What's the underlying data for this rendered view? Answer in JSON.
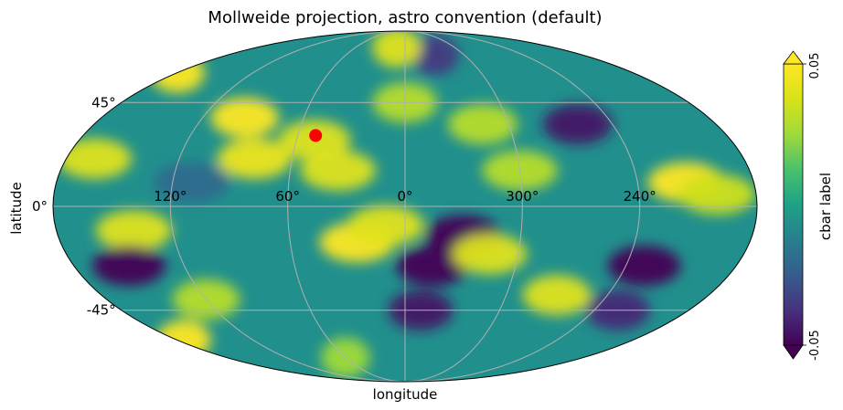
{
  "chart_data": {
    "type": "heatmap",
    "projection": "mollweide",
    "title": "Mollweide projection, astro convention (default)",
    "xlabel": "longitude",
    "ylabel": "latitude",
    "lon_ticks": [
      "120°",
      "60°",
      "0°",
      "300°",
      "240°"
    ],
    "lon_tick_values": [
      120,
      60,
      0,
      300,
      240
    ],
    "lat_ticks": [
      "45°",
      "0°",
      "-45°"
    ],
    "lat_tick_values": [
      45,
      0,
      -45
    ],
    "grid": true,
    "colormap": "viridis",
    "colorbar": {
      "label": "cbar label",
      "vmin": -0.05,
      "vmax": 0.05,
      "min_label": "-0.05",
      "max_label": "0.05",
      "extend": "both",
      "position": "right"
    },
    "point": {
      "lon": 50,
      "lat": 30,
      "color": "#ff0000"
    },
    "field_features": [
      {
        "lon": 95,
        "lat": 38,
        "value": 0.05
      },
      {
        "lon": 80,
        "lat": 20,
        "value": 0.045
      },
      {
        "lon": 50,
        "lat": 28,
        "value": 0.04
      },
      {
        "lon": 35,
        "lat": 15,
        "value": 0.04
      },
      {
        "lon": 25,
        "lat": -15,
        "value": 0.05
      },
      {
        "lon": 10,
        "lat": -8,
        "value": 0.04
      },
      {
        "lon": 140,
        "lat": -10,
        "value": 0.04
      },
      {
        "lon": 165,
        "lat": 20,
        "value": 0.04
      },
      {
        "lon": 120,
        "lat": -40,
        "value": 0.03
      },
      {
        "lon": 345,
        "lat": -25,
        "value": -0.05
      },
      {
        "lon": 330,
        "lat": -12,
        "value": -0.05
      },
      {
        "lon": 350,
        "lat": -45,
        "value": -0.045
      },
      {
        "lon": 150,
        "lat": -25,
        "value": -0.05
      },
      {
        "lon": 230,
        "lat": -25,
        "value": -0.05
      },
      {
        "lon": 225,
        "lat": -45,
        "value": -0.04
      },
      {
        "lon": 260,
        "lat": 35,
        "value": -0.045
      },
      {
        "lon": 330,
        "lat": 70,
        "value": -0.035
      },
      {
        "lon": 315,
        "lat": -20,
        "value": 0.04
      },
      {
        "lon": 300,
        "lat": 15,
        "value": 0.03
      },
      {
        "lon": 315,
        "lat": 35,
        "value": 0.03
      },
      {
        "lon": 215,
        "lat": 10,
        "value": 0.05
      },
      {
        "lon": 200,
        "lat": 5,
        "value": 0.035
      },
      {
        "lon": 270,
        "lat": -38,
        "value": 0.04
      },
      {
        "lon": 10,
        "lat": 75,
        "value": 0.04
      },
      {
        "lon": 180,
        "lat": 60,
        "value": 0.05
      },
      {
        "lon": 175,
        "lat": -60,
        "value": 0.05
      },
      {
        "lon": 60,
        "lat": -70,
        "value": 0.025
      },
      {
        "lon": 0,
        "lat": 45,
        "value": 0.03
      },
      {
        "lon": 110,
        "lat": 10,
        "value": -0.02
      }
    ]
  }
}
